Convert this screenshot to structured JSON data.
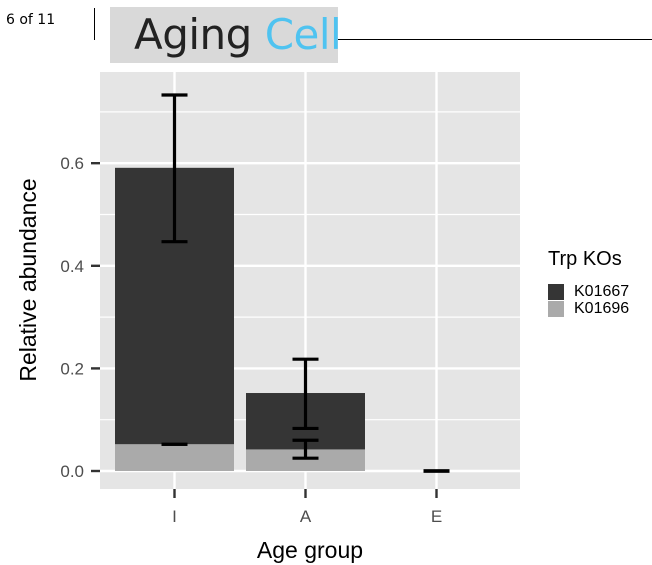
{
  "header": {
    "page_number": "6 of 11",
    "journal_name_part1": "Aging",
    "journal_name_part2": "Cell"
  },
  "colors": {
    "panel_bg": "#e5e5e5",
    "grid": "#ffffff",
    "K01667": "#353535",
    "K01696": "#aaaaaa",
    "journal_accent": "#4fc3f0"
  },
  "chart_data": {
    "type": "bar",
    "stacked": true,
    "xlabel": "Age group",
    "ylabel": "Relative abundance",
    "categories": [
      "I",
      "A",
      "E"
    ],
    "ylim": [
      0,
      0.75
    ],
    "yticks": [
      0.0,
      0.2,
      0.4,
      0.6
    ],
    "ytick_labels": [
      "0.0",
      "0.2",
      "0.4",
      "0.6"
    ],
    "grid": true,
    "legend_title": "Trp KOs",
    "legend_position": "right",
    "series": [
      {
        "name": "K01667",
        "color": "#353535",
        "values": [
          0.539,
          0.11,
          0.0
        ],
        "error_low": [
          0.447,
          0.083,
          0.0
        ],
        "error_high": [
          0.733,
          0.218,
          0.0
        ]
      },
      {
        "name": "K01696",
        "color": "#aaaaaa",
        "values": [
          0.052,
          0.042,
          0.0
        ],
        "error_low": [
          0.052,
          0.025,
          0.0
        ],
        "error_high": [
          0.052,
          0.06,
          0.0
        ]
      }
    ]
  }
}
